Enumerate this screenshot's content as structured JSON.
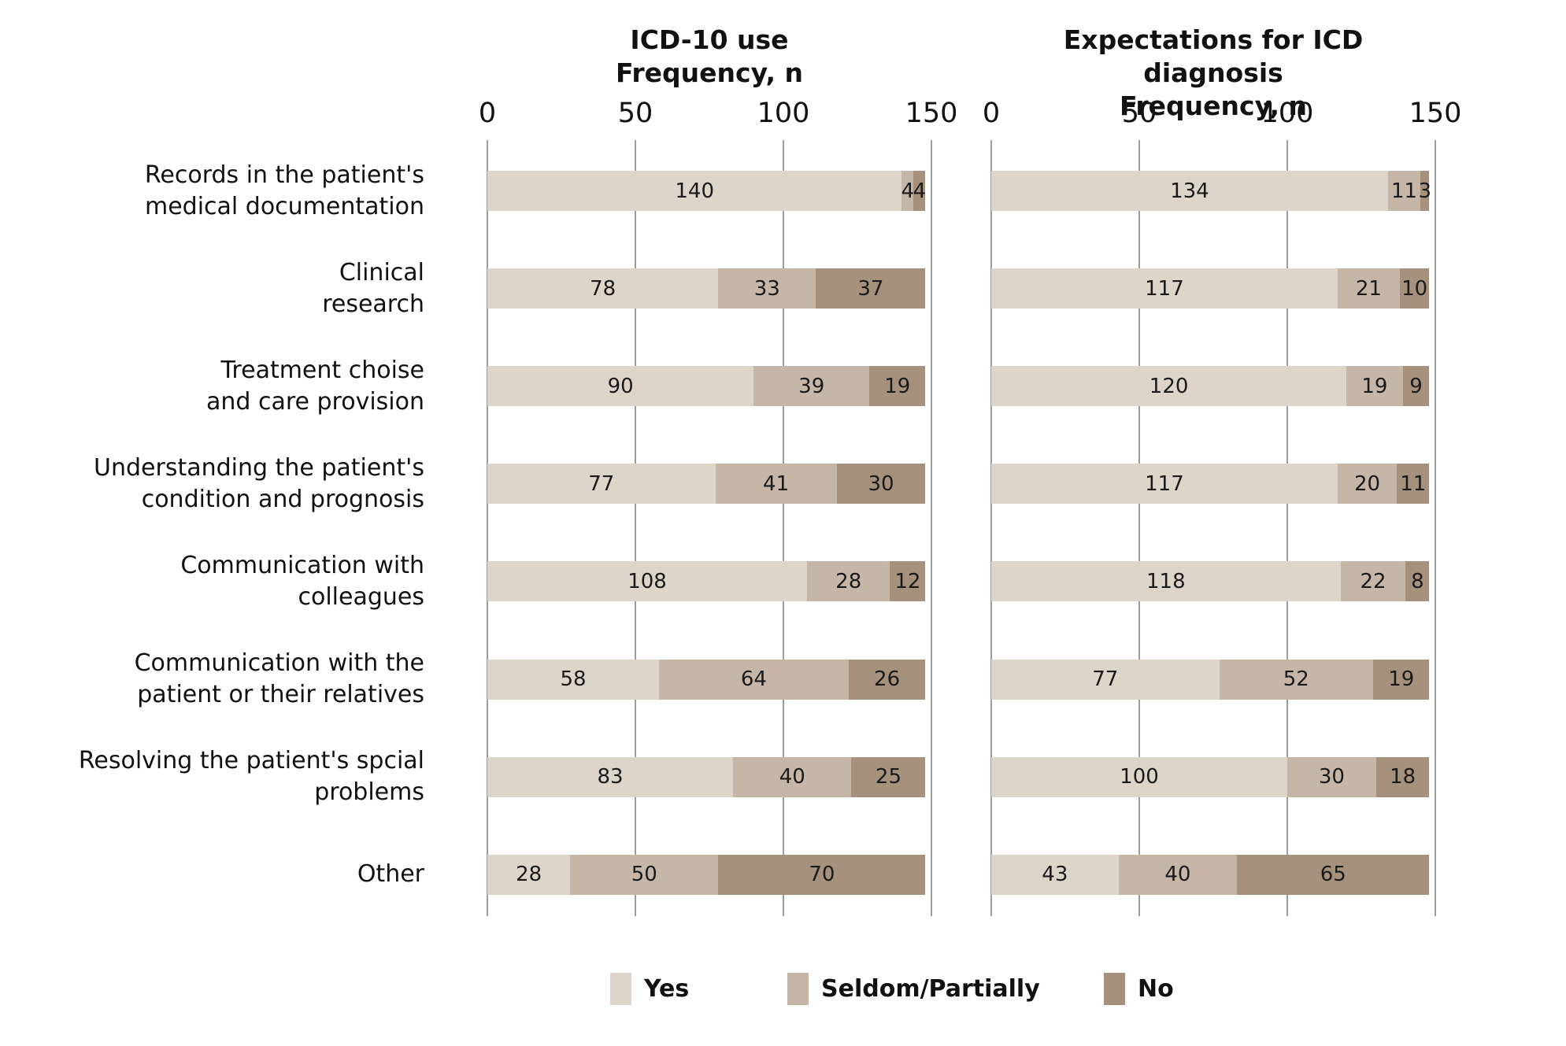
{
  "page": {
    "background": "#ffffff"
  },
  "legend": {
    "position": "bottom",
    "items": [
      {
        "label": "Yes",
        "color": "#ded5ca"
      },
      {
        "label": "Seldom/Partially",
        "color": "#c5b6a8"
      },
      {
        "label": "No",
        "color": "#a6917d"
      }
    ]
  },
  "chart_data": {
    "type": "bar",
    "orientation": "horizontal",
    "stacked": true,
    "grid": true,
    "xlim": [
      0,
      150
    ],
    "xticks": [
      0,
      50,
      100,
      150
    ],
    "gridline_color": "#9c9c9c",
    "categories": [
      [
        "Records in the patient's",
        "medical documentation"
      ],
      [
        "Clinical",
        "research"
      ],
      [
        "Treatment choise",
        "and care provision"
      ],
      [
        "Understanding   the patient's",
        "condition and prognosis"
      ],
      [
        "Communication with",
        "colleagues"
      ],
      [
        "Communication with the",
        "patient or their relatives"
      ],
      [
        "Resolving the patient's spcial",
        "problems"
      ],
      [
        "Other"
      ]
    ],
    "series_names": [
      "Yes",
      "Seldom/Partially",
      "No"
    ],
    "colors": {
      "Yes": "#ded5ca",
      "Seldom/Partially": "#c5b6a8",
      "No": "#a6917d"
    },
    "panels": [
      {
        "title_line1": "ICD-10 use",
        "title_line2": "Frequency, n",
        "series": [
          {
            "name": "Yes",
            "values": [
              140,
              78,
              90,
              77,
              108,
              58,
              83,
              28
            ]
          },
          {
            "name": "Seldom/Partially",
            "values": [
              4,
              33,
              39,
              41,
              28,
              64,
              40,
              50
            ]
          },
          {
            "name": "No",
            "values": [
              4,
              37,
              19,
              30,
              12,
              26,
              25,
              70
            ]
          }
        ]
      },
      {
        "title_line1": "Expectations for ICD diagnosis",
        "title_line2": "Frequency, n",
        "series": [
          {
            "name": "Yes",
            "values": [
              134,
              117,
              120,
              117,
              118,
              77,
              100,
              43
            ]
          },
          {
            "name": "Seldom/Partially",
            "values": [
              11,
              21,
              19,
              20,
              22,
              52,
              30,
              40
            ]
          },
          {
            "name": "No",
            "values": [
              3,
              10,
              9,
              11,
              8,
              19,
              18,
              65
            ]
          }
        ]
      }
    ]
  }
}
